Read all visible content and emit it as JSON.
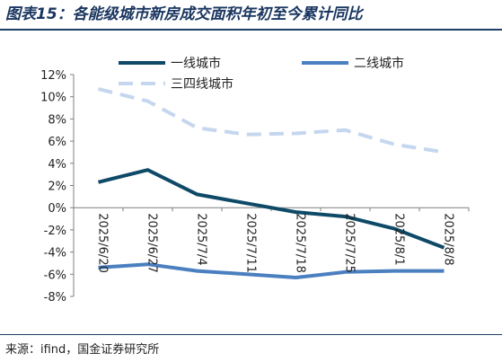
{
  "title": "图表15：各能级城市新房成交面积年初至今累计同比",
  "source": "来源：ifind，国金证券研究所",
  "chart_data": {
    "type": "line",
    "categories": [
      "2025/6/20",
      "2025/6/27",
      "2025/7/4",
      "2025/7/11",
      "2025/7/18",
      "2025/7/25",
      "2025/8/1",
      "2025/8/8"
    ],
    "ylim": [
      -8,
      12
    ],
    "yticks": [
      -8,
      -6,
      -4,
      -2,
      0,
      2,
      4,
      6,
      8,
      10,
      12
    ],
    "ytick_labels": [
      "-8%",
      "-6%",
      "-4%",
      "-2%",
      "0%",
      "2%",
      "4%",
      "6%",
      "8%",
      "10%",
      "12%"
    ],
    "legend_position": "top",
    "series": [
      {
        "name": "一线城市",
        "color": "#0e4a67",
        "dash": "solid",
        "values": [
          2.3,
          3.4,
          1.2,
          0.4,
          -0.4,
          -0.8,
          -1.9,
          -3.6
        ]
      },
      {
        "name": "二线城市",
        "color": "#4a7fc0",
        "dash": "solid",
        "values": [
          -5.4,
          -5.1,
          -5.7,
          -6.0,
          -6.3,
          -5.8,
          -5.7,
          -5.7
        ]
      },
      {
        "name": "三四线城市",
        "color": "#c5d7ee",
        "dash": "dashed",
        "values": [
          10.7,
          9.6,
          7.2,
          6.6,
          6.7,
          7.0,
          5.7,
          5.0
        ]
      }
    ]
  }
}
